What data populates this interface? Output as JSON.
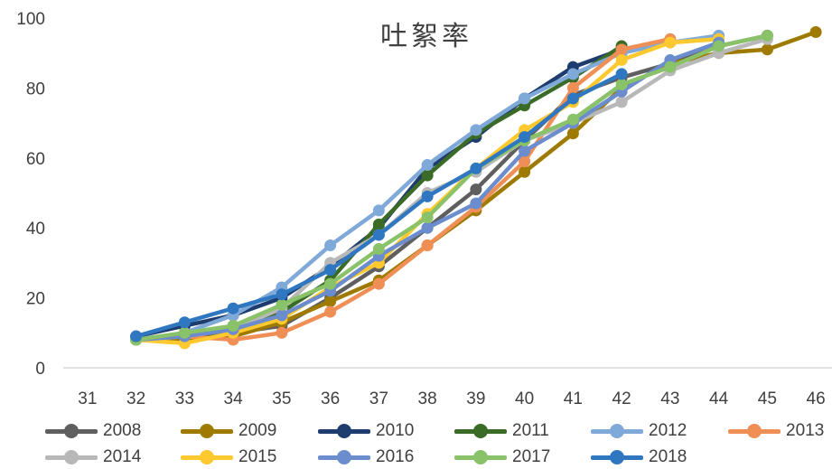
{
  "chart_data": {
    "type": "line",
    "title": "吐絮率",
    "xlabel": "",
    "ylabel": "",
    "x_ticks": [
      31,
      32,
      33,
      34,
      35,
      36,
      37,
      38,
      39,
      40,
      41,
      42,
      43,
      44,
      45,
      46
    ],
    "y_ticks": [
      0,
      20,
      40,
      60,
      80,
      100
    ],
    "xlim": [
      30.5,
      46.5
    ],
    "ylim": [
      0,
      100
    ],
    "grid": false,
    "legend_position": "bottom",
    "series": [
      {
        "name": "2008",
        "color": "#5f5f5f",
        "points": [
          [
            32,
            8
          ],
          [
            33,
            9
          ],
          [
            34,
            10
          ],
          [
            35,
            12
          ],
          [
            36,
            20
          ],
          [
            37,
            29
          ],
          [
            38,
            40
          ],
          [
            39,
            51
          ],
          [
            40,
            65
          ],
          [
            41,
            78
          ],
          [
            42,
            83
          ],
          [
            43,
            87
          ],
          [
            44,
            92
          ],
          [
            45,
            95
          ]
        ]
      },
      {
        "name": "2009",
        "color": "#9e7b00",
        "points": [
          [
            32,
            8
          ],
          [
            33,
            8
          ],
          [
            34,
            9
          ],
          [
            35,
            13
          ],
          [
            36,
            19
          ],
          [
            37,
            25
          ],
          [
            38,
            35
          ],
          [
            39,
            45
          ],
          [
            40,
            56
          ],
          [
            41,
            67
          ],
          [
            42,
            80
          ],
          [
            43,
            87
          ],
          [
            44,
            90
          ],
          [
            45,
            91
          ],
          [
            46,
            96
          ]
        ]
      },
      {
        "name": "2010",
        "color": "#1f3c6e",
        "points": [
          [
            32,
            9
          ],
          [
            33,
            12
          ],
          [
            34,
            15
          ],
          [
            35,
            20
          ],
          [
            36,
            29
          ],
          [
            37,
            40
          ],
          [
            38,
            57
          ],
          [
            39,
            66
          ],
          [
            40,
            77
          ],
          [
            41,
            86
          ],
          [
            42,
            91
          ]
        ]
      },
      {
        "name": "2011",
        "color": "#3a6b27",
        "points": [
          [
            32,
            8
          ],
          [
            33,
            9
          ],
          [
            34,
            12
          ],
          [
            35,
            16
          ],
          [
            36,
            25
          ],
          [
            37,
            41
          ],
          [
            38,
            55
          ],
          [
            39,
            67
          ],
          [
            40,
            75
          ],
          [
            41,
            83
          ],
          [
            42,
            92
          ]
        ]
      },
      {
        "name": "2012",
        "color": "#7fa9d8",
        "points": [
          [
            32,
            8
          ],
          [
            33,
            10
          ],
          [
            34,
            15
          ],
          [
            35,
            23
          ],
          [
            36,
            35
          ],
          [
            37,
            45
          ],
          [
            38,
            58
          ],
          [
            39,
            68
          ],
          [
            40,
            77
          ],
          [
            41,
            84
          ],
          [
            42,
            90
          ],
          [
            43,
            93
          ],
          [
            44,
            95
          ]
        ]
      },
      {
        "name": "2013",
        "color": "#ef8e55",
        "points": [
          [
            32,
            8
          ],
          [
            33,
            9
          ],
          [
            34,
            8
          ],
          [
            35,
            10
          ],
          [
            36,
            16
          ],
          [
            37,
            24
          ],
          [
            38,
            35
          ],
          [
            39,
            46
          ],
          [
            40,
            59
          ],
          [
            41,
            80
          ],
          [
            42,
            91
          ],
          [
            43,
            94
          ]
        ]
      },
      {
        "name": "2014",
        "color": "#b8b8b8",
        "points": [
          [
            32,
            8
          ],
          [
            33,
            9
          ],
          [
            34,
            11
          ],
          [
            35,
            17
          ],
          [
            36,
            30
          ],
          [
            37,
            38
          ],
          [
            38,
            50
          ],
          [
            39,
            56
          ],
          [
            40,
            65
          ],
          [
            41,
            70
          ],
          [
            42,
            76
          ],
          [
            43,
            85
          ],
          [
            44,
            90
          ],
          [
            45,
            94
          ]
        ]
      },
      {
        "name": "2015",
        "color": "#fec82f",
        "points": [
          [
            32,
            8
          ],
          [
            33,
            7
          ],
          [
            34,
            10
          ],
          [
            35,
            14
          ],
          [
            36,
            23
          ],
          [
            37,
            30
          ],
          [
            38,
            44
          ],
          [
            39,
            57
          ],
          [
            40,
            68
          ],
          [
            41,
            76
          ],
          [
            42,
            88
          ],
          [
            43,
            93
          ],
          [
            44,
            94
          ]
        ]
      },
      {
        "name": "2016",
        "color": "#6b8ccd",
        "points": [
          [
            32,
            8
          ],
          [
            33,
            9
          ],
          [
            34,
            11
          ],
          [
            35,
            15
          ],
          [
            36,
            22
          ],
          [
            37,
            32
          ],
          [
            38,
            40
          ],
          [
            39,
            47
          ],
          [
            40,
            62
          ],
          [
            41,
            70
          ],
          [
            42,
            79
          ],
          [
            43,
            88
          ],
          [
            44,
            93
          ]
        ]
      },
      {
        "name": "2017",
        "color": "#8ac269",
        "points": [
          [
            32,
            8
          ],
          [
            33,
            10
          ],
          [
            34,
            12
          ],
          [
            35,
            18
          ],
          [
            36,
            24
          ],
          [
            37,
            34
          ],
          [
            38,
            43
          ],
          [
            39,
            57
          ],
          [
            40,
            65
          ],
          [
            41,
            71
          ],
          [
            42,
            81
          ],
          [
            43,
            86
          ],
          [
            44,
            92
          ],
          [
            45,
            95
          ]
        ]
      },
      {
        "name": "2018",
        "color": "#2f77c0",
        "points": [
          [
            32,
            9
          ],
          [
            33,
            13
          ],
          [
            34,
            17
          ],
          [
            35,
            21
          ],
          [
            36,
            28
          ],
          [
            37,
            38
          ],
          [
            38,
            49
          ],
          [
            39,
            57
          ],
          [
            40,
            66
          ],
          [
            41,
            77
          ],
          [
            42,
            84
          ]
        ]
      }
    ]
  }
}
